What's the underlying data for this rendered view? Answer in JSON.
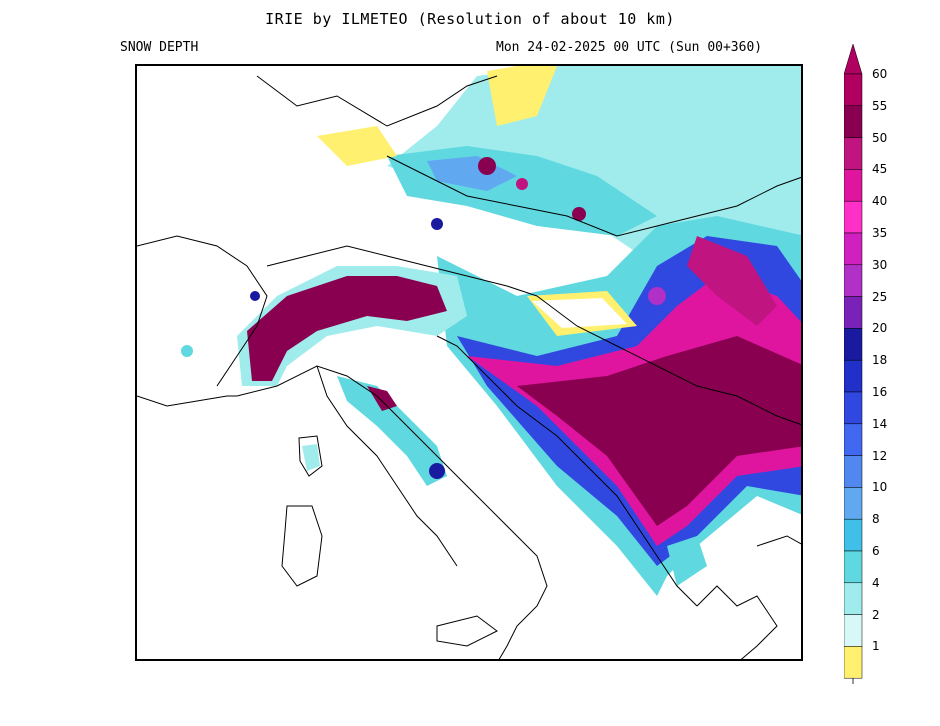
{
  "header": {
    "title": "IRIE by ILMETEO (Resolution of about 10 km)",
    "variable": "SNOW DEPTH",
    "valid_time": "Mon 24-02-2025 00 UTC (Sun 00+360)"
  },
  "legend": {
    "levels": [
      {
        "label": "60",
        "color": "#b00060"
      },
      {
        "label": "55",
        "color": "#8a0050"
      },
      {
        "label": "50",
        "color": "#c01580"
      },
      {
        "label": "45",
        "color": "#e0159f"
      },
      {
        "label": "40",
        "color": "#ff30c8"
      },
      {
        "label": "35",
        "color": "#d020c0"
      },
      {
        "label": "30",
        "color": "#b030c8"
      },
      {
        "label": "25",
        "color": "#7a22b8"
      },
      {
        "label": "20",
        "color": "#1a1aa0"
      },
      {
        "label": "18",
        "color": "#2030c8"
      },
      {
        "label": "16",
        "color": "#3048e0"
      },
      {
        "label": "14",
        "color": "#4068f0"
      },
      {
        "label": "12",
        "color": "#5088f0"
      },
      {
        "label": "10",
        "color": "#60a8f0"
      },
      {
        "label": "8",
        "color": "#40c0e8"
      },
      {
        "label": "6",
        "color": "#60d8e0"
      },
      {
        "label": "4",
        "color": "#a0ecec"
      },
      {
        "label": "2",
        "color": "#d8f8f8"
      },
      {
        "label": "1",
        "color": "#fff070"
      }
    ]
  }
}
